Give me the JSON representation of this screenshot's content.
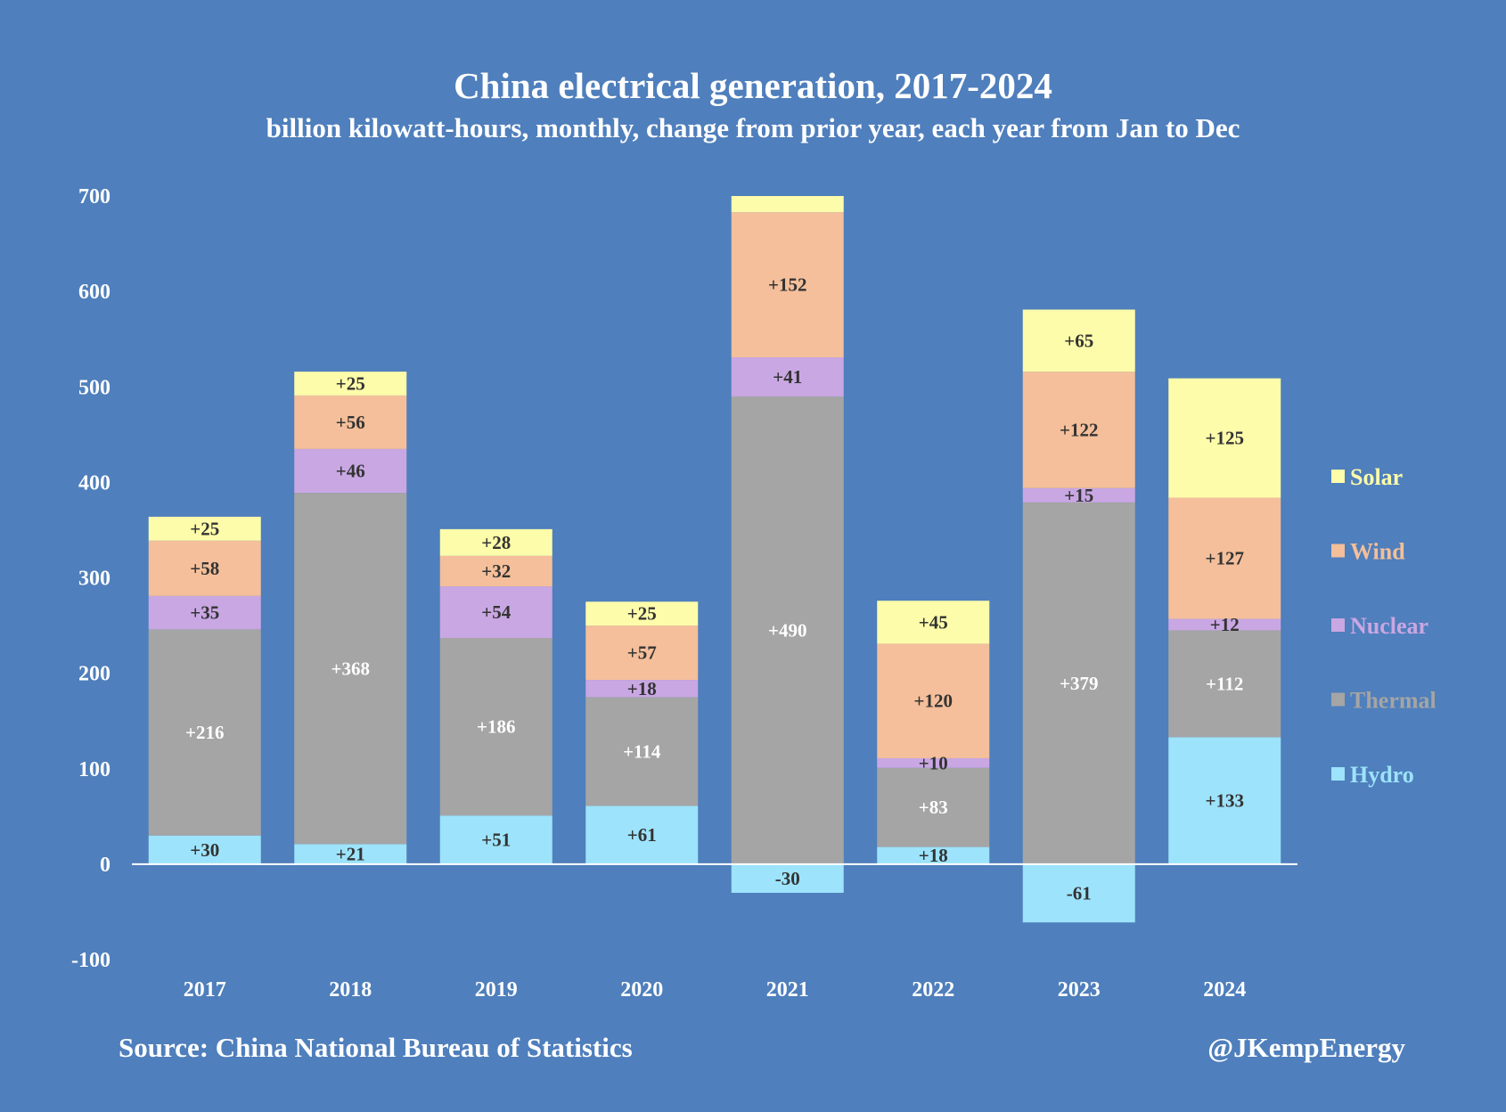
{
  "chart_data": {
    "type": "bar",
    "stacked": true,
    "title": "China electrical generation, 2017-2024",
    "subtitle": "billion kilowatt-hours, monthly, change from prior year, each year from Jan to Dec",
    "categories": [
      "2017",
      "2018",
      "2019",
      "2020",
      "2021",
      "2022",
      "2023",
      "2024"
    ],
    "ylim": [
      -100,
      700
    ],
    "yticks": [
      -100,
      0,
      100,
      200,
      300,
      400,
      500,
      600,
      700
    ],
    "legend_position": "right",
    "series": [
      {
        "name": "Hydro",
        "color": "#9de3fb",
        "values": [
          30,
          21,
          51,
          61,
          -30,
          18,
          -61,
          133
        ],
        "labels": [
          "+30",
          "+21",
          "+51",
          "+61",
          "-30",
          "+18",
          "-61",
          "+133"
        ],
        "label_color": "#333333",
        "legend_color": "#9de3fb"
      },
      {
        "name": "Thermal",
        "color": "#a5a5a5",
        "values": [
          216,
          368,
          186,
          114,
          490,
          83,
          379,
          112
        ],
        "labels": [
          "+216",
          "+368",
          "+186",
          "+114",
          "+490",
          "+83",
          "+379",
          "+112"
        ],
        "label_color": "#ffffff",
        "legend_color": "#a5a5a5"
      },
      {
        "name": "Nuclear",
        "color": "#c9a7e3",
        "values": [
          35,
          46,
          54,
          18,
          41,
          10,
          15,
          12
        ],
        "labels": [
          "+35",
          "+46",
          "+54",
          "+18",
          "+41",
          "+10",
          "+15",
          "+12"
        ],
        "label_color": "#333333",
        "legend_color": "#c9a7e3"
      },
      {
        "name": "Wind",
        "color": "#f4bf9a",
        "values": [
          58,
          56,
          32,
          57,
          152,
          120,
          122,
          127
        ],
        "labels": [
          "+58",
          "+56",
          "+32",
          "+57",
          "+152",
          "+120",
          "+122",
          "+127"
        ],
        "label_color": "#333333",
        "legend_color": "#f4bf9a"
      },
      {
        "name": "Solar",
        "color": "#fdfcaa",
        "values": [
          25,
          25,
          28,
          25,
          17,
          45,
          65,
          125
        ],
        "labels": [
          "+25",
          "+25",
          "+28",
          "+25",
          "",
          "+45",
          "+65",
          "+125"
        ],
        "label_color": "#333333",
        "legend_color": "#fdfcaa"
      }
    ]
  },
  "footer": {
    "source": "Source: China National Bureau of Statistics",
    "credit": "@JKempEnergy"
  }
}
